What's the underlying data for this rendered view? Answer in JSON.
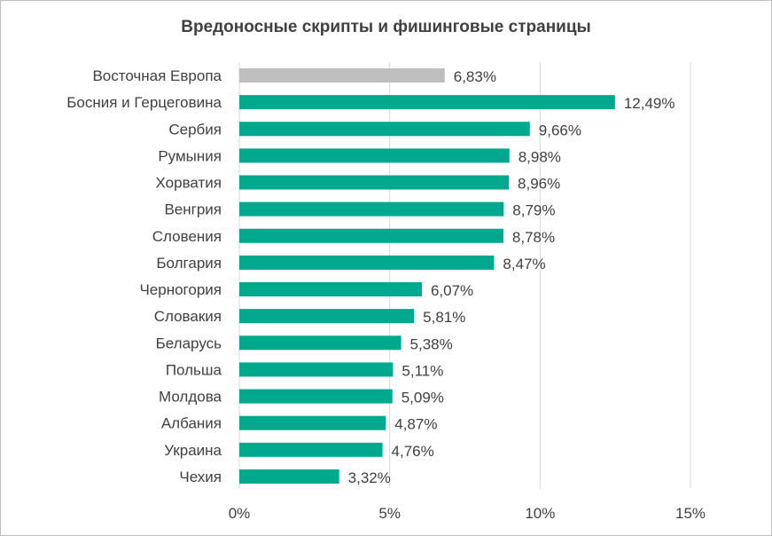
{
  "chart_data": {
    "type": "bar",
    "orientation": "horizontal",
    "title": "Вредоносные скрипты и фишинговые страницы",
    "categories": [
      "Восточная Европа",
      "Босния и Герцеговина",
      "Сербия",
      "Румыния",
      "Хорватия",
      "Венгрия",
      "Словения",
      "Болгария",
      "Черногория",
      "Словакия",
      "Беларусь",
      "Польша",
      "Молдова",
      "Албания",
      "Украина",
      "Чехия"
    ],
    "values": [
      6.83,
      12.49,
      9.66,
      8.98,
      8.96,
      8.79,
      8.78,
      8.47,
      6.07,
      5.81,
      5.38,
      5.11,
      5.09,
      4.87,
      4.76,
      3.32
    ],
    "labels": [
      "6,83%",
      "12,49%",
      "9,66%",
      "8,98%",
      "8,96%",
      "8,79%",
      "8,78%",
      "8,47%",
      "6,07%",
      "5,81%",
      "5,38%",
      "5,11%",
      "5,09%",
      "4,87%",
      "4,76%",
      "3,32%"
    ],
    "xticks": [
      0,
      5,
      10,
      15
    ],
    "xtick_labels": [
      "0%",
      "5%",
      "10%",
      "15%"
    ],
    "xlim": [
      0,
      15
    ],
    "xlabel": "",
    "ylabel": "",
    "grid": true,
    "legend": "none",
    "colors": {
      "highlight": "#bfbfbf",
      "default": "#00a88e",
      "grid": "#d9d9d9"
    }
  }
}
